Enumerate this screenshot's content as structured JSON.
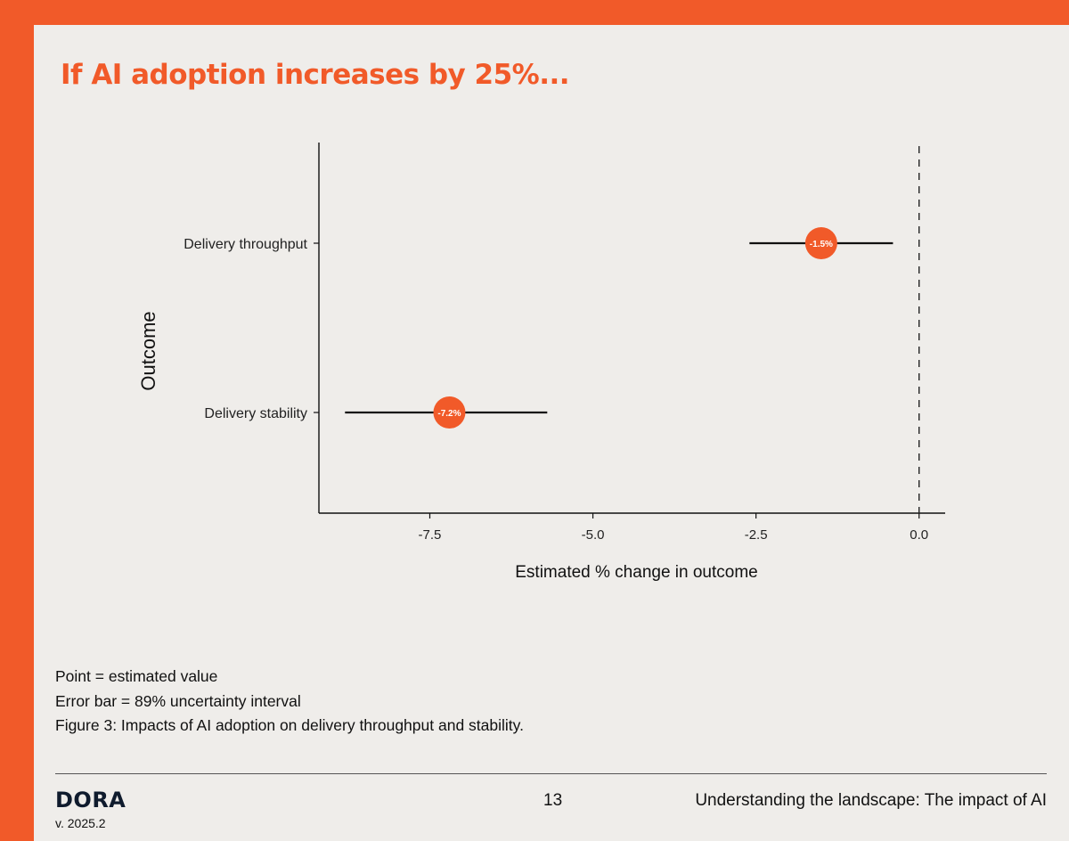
{
  "title": "If AI adoption increases by 25%...",
  "chart_data": {
    "type": "scatter",
    "subtype": "point-with-error-bars",
    "xlabel": "Estimated % change in outcome",
    "ylabel": "Outcome",
    "xlim": [
      -9.2,
      0.4
    ],
    "xticks": [
      -7.5,
      -5.0,
      -2.5,
      0.0
    ],
    "xtick_labels": [
      "-7.5",
      "-5.0",
      "-2.5",
      "0.0"
    ],
    "reference_line": 0.0,
    "categories": [
      "Delivery throughput",
      "Delivery stability"
    ],
    "points": [
      {
        "category": "Delivery throughput",
        "value": -1.5,
        "label": "-1.5%",
        "lower": -2.6,
        "upper": -0.4
      },
      {
        "category": "Delivery stability",
        "value": -7.2,
        "label": "-7.2%",
        "lower": -8.8,
        "upper": -5.7
      }
    ],
    "colors": {
      "point": "#f15a29",
      "errorbar": "#111111",
      "axis": "#111111"
    }
  },
  "notes": [
    "Point = estimated value",
    "Error bar = 89% uncertainty interval",
    "Figure 3: Impacts of AI adoption on delivery throughput and stability."
  ],
  "footer": {
    "brand": "DORA",
    "version": "v. 2025.2",
    "page_number": "13",
    "section": "Understanding the landscape: The impact of AI"
  }
}
